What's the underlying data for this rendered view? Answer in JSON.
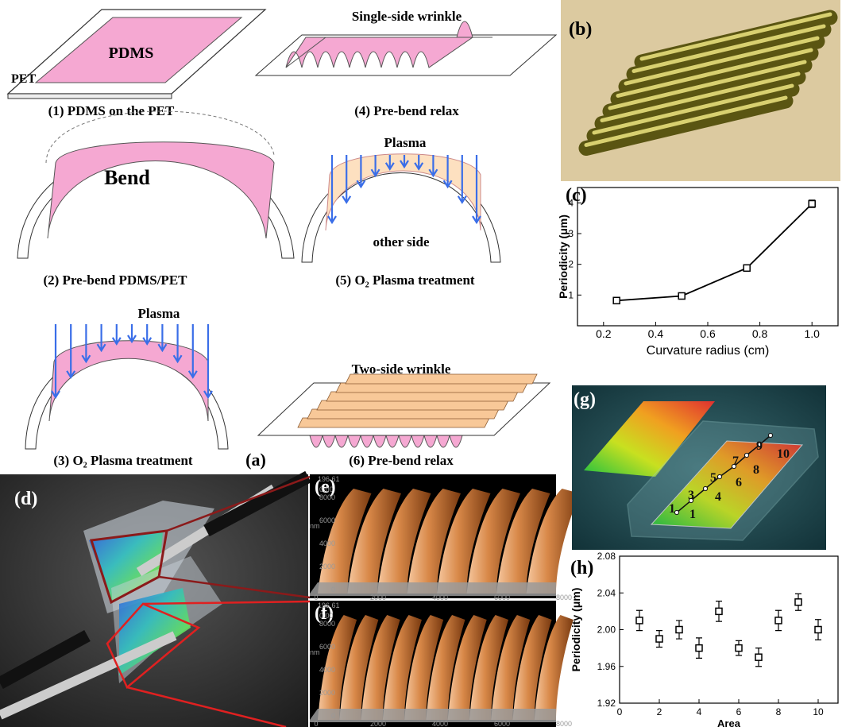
{
  "panel_a": {
    "label": "(a)",
    "step1": {
      "pdms": "PDMS",
      "pet": "PET",
      "caption": "(1) PDMS on the PET"
    },
    "step2": {
      "bend": "Bend",
      "caption": "(2) Pre-bend PDMS/PET"
    },
    "step3": {
      "plasma": "Plasma",
      "caption": "(3) O₂ Plasma treatment"
    },
    "step4": {
      "title": "Single-side wrinkle",
      "caption": "(4) Pre-bend relax"
    },
    "step5": {
      "plasma": "Plasma",
      "other_side": "other side",
      "caption": "(5) O₂ Plasma treatment"
    },
    "step6": {
      "title": "Two-side wrinkle",
      "caption": "(6) Pre-bend relax"
    }
  },
  "panel_b": {
    "label": "(b)"
  },
  "panel_d": {
    "label": "(d)"
  },
  "panel_e": {
    "label": "(e)",
    "scale_max": "196.61",
    "scale_min": "0.00",
    "unit": "nm",
    "y_labels": [
      "8000",
      "6000",
      "4000",
      "2000",
      "0"
    ],
    "x_labels": [
      "0",
      "2000",
      "4000",
      "6000",
      "8000"
    ]
  },
  "panel_f": {
    "label": "(f)",
    "scale_max": "196.61",
    "scale_min": "0.00",
    "unit": "nm",
    "y_labels": [
      "8000",
      "6000",
      "4000",
      "2000",
      "0"
    ],
    "x_labels": [
      "0",
      "2000",
      "4000",
      "6000",
      "8000"
    ]
  },
  "panel_g": {
    "label": "(g)",
    "point_labels": [
      "1",
      "3",
      "5",
      "7",
      "9",
      "1",
      "4",
      "6",
      "8",
      "10"
    ]
  },
  "chart_data": [
    {
      "type": "line",
      "panel_label": "(c)",
      "x_label": "Curvature radius (cm)",
      "y_label": "Periodicity (μm)",
      "x": [
        0.25,
        0.5,
        0.75,
        1.0
      ],
      "values": [
        0.82,
        0.97,
        1.88,
        3.97
      ],
      "errors": [
        0.07,
        0.08,
        0.1,
        0.12
      ],
      "color": "#000000",
      "xlim": [
        0.1,
        1.1
      ],
      "xticks": [
        0.2,
        0.4,
        0.6,
        0.8,
        {
          "value": 1.0,
          "label": "1.0"
        }
      ],
      "ylim": [
        0,
        4.5
      ],
      "yticks": [
        1,
        2,
        3,
        4
      ]
    },
    {
      "type": "scatter",
      "panel_label": "(h)",
      "x_label": "Area",
      "y_label": "Periodicity (μm)",
      "x": [
        1,
        2,
        3,
        4,
        5,
        6,
        7,
        8,
        9,
        10
      ],
      "values": [
        2.01,
        1.99,
        2.0,
        1.98,
        2.02,
        1.98,
        1.97,
        2.01,
        2.03,
        2.0
      ],
      "errors": [
        0.011,
        0.009,
        0.01,
        0.011,
        0.011,
        0.008,
        0.01,
        0.011,
        0.009,
        0.011
      ],
      "color": "#000000",
      "xlim": [
        0,
        11
      ],
      "xticks": [
        0,
        2,
        4,
        6,
        8,
        10
      ],
      "ylim": [
        1.92,
        2.08
      ],
      "yticks": [
        1.92,
        1.96,
        {
          "value": 2.0,
          "label": "2.00"
        },
        2.04,
        2.08
      ]
    }
  ]
}
